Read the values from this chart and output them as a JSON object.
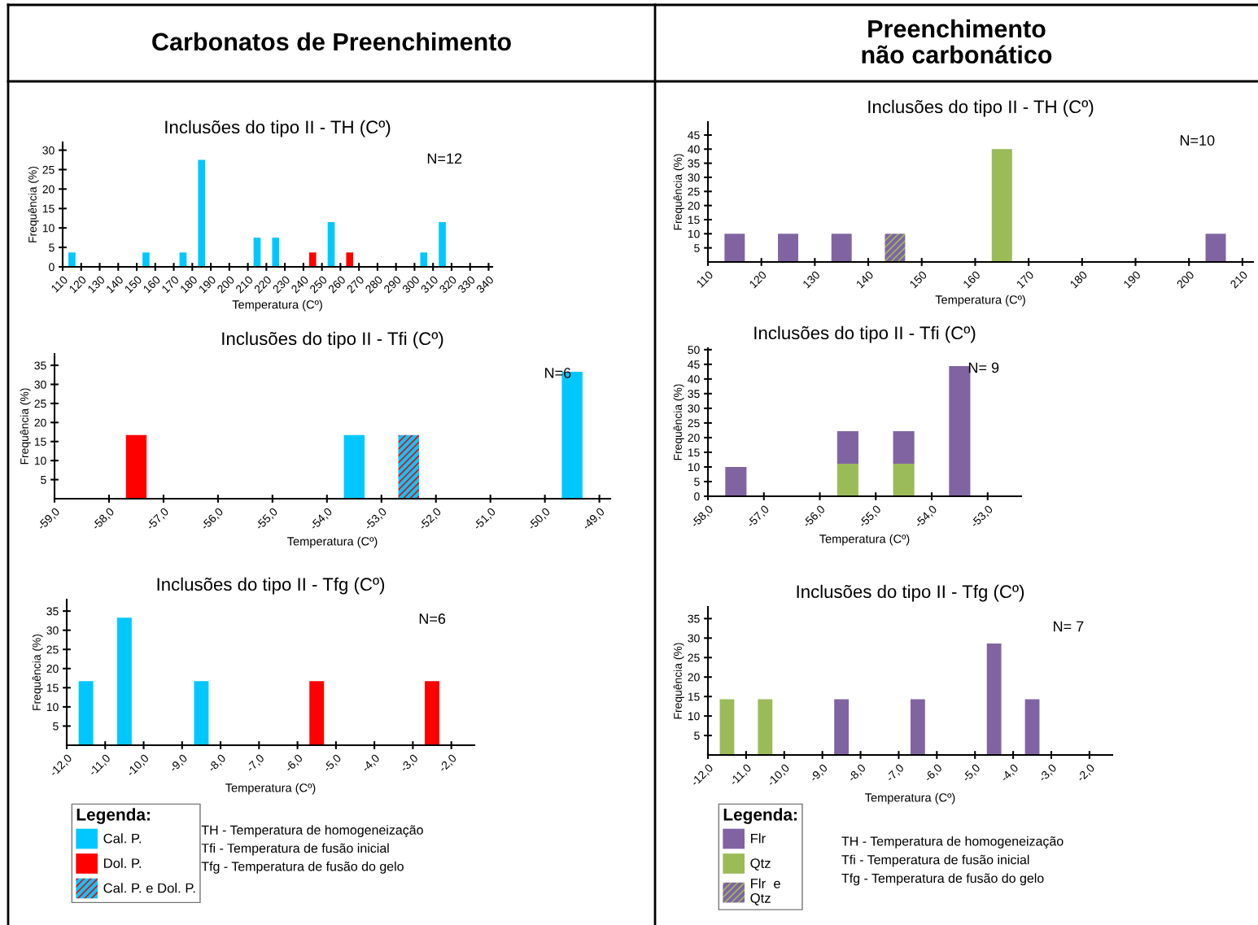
{
  "chart_data": [
    {
      "type": "bar",
      "subtitle": "Carbonatos de Preenchimento",
      "title": "Inclusões do tipo II - TH (Cº)",
      "xlabel": "Temperatura (Cº)",
      "ylabel": "Frequência (%)",
      "annotations": [
        "N=12"
      ],
      "legend": "bottom",
      "xlim": [
        110,
        342
      ],
      "xticks": [
        110,
        120,
        130,
        140,
        150,
        160,
        170,
        180,
        190,
        200,
        210,
        220,
        230,
        240,
        250,
        260,
        270,
        280,
        290,
        300,
        310,
        320,
        330,
        340
      ],
      "ylim": [
        0,
        32
      ],
      "yticks": [
        0,
        5,
        10,
        15,
        20,
        25,
        30
      ],
      "grid": false,
      "series": [
        {
          "name": "Cal. P.",
          "color": "#00c8ff",
          "x": [
            115,
            155,
            175,
            185,
            215,
            225,
            255,
            305,
            315
          ],
          "values": [
            3.7,
            3.7,
            3.7,
            27.5,
            7.5,
            7.5,
            11.5,
            3.7,
            11.5
          ]
        },
        {
          "name": "Dol. P.",
          "color": "#ff0000",
          "x": [
            245,
            265
          ],
          "values": [
            3.7,
            3.7
          ]
        }
      ]
    },
    {
      "type": "bar",
      "title": "Inclusões do tipo II - Tfi (Cº)",
      "xlabel": "Temperatura (Cº)",
      "ylabel": "Frequência (%)",
      "annotations": [
        "N=6"
      ],
      "legend_title": "Legenda:",
      "legend": "bottom",
      "xlim": [
        -59,
        -48.8
      ],
      "xticks": [
        {
          "value": -59,
          "label": "-59,0"
        },
        {
          "value": -58,
          "label": "-58,0"
        },
        {
          "value": -57,
          "label": "-57,0"
        },
        {
          "value": -56,
          "label": "-56,0"
        },
        {
          "value": -55,
          "label": "-55,0"
        },
        {
          "value": -54,
          "label": "-54,0"
        },
        {
          "value": -53,
          "label": "-53,0"
        },
        {
          "value": -52,
          "label": "-52,0"
        },
        {
          "value": -51,
          "label": "-51,0"
        },
        {
          "value": -50,
          "label": "-50,0"
        },
        {
          "value": -49,
          "label": "-49,0"
        }
      ],
      "ylim": [
        0,
        38
      ],
      "yticks": [
        5,
        10,
        15,
        20,
        25,
        30,
        35
      ],
      "grid": false,
      "series": [
        {
          "name": "Cal. P.",
          "color": "#00c8ff",
          "x": [
            -53.5,
            -49.5
          ],
          "values": [
            16.7,
            33.3
          ]
        },
        {
          "name": "Dol. P.",
          "color": "#ff0000",
          "x": [
            -57.5
          ],
          "values": [
            16.7
          ]
        },
        {
          "name": "Cal. P. e Dol. P.",
          "color": "#00c8ff",
          "x": [
            -52.5
          ],
          "values": [
            16.7
          ]
        }
      ]
    },
    {
      "type": "bar",
      "title": "Inclusões do tipo II - Tfg (Cº)",
      "xlabel": "Temperatura (Cº)",
      "ylabel": "Frequência (%)",
      "legend": "bottom",
      "annotations": [
        "N=6",
        "TH - Temperatura de homogeneização",
        "Tfi - Temperatura de fusão inicial",
        "Tfg - Temperatura de fusão do gelo"
      ],
      "xlim": [
        -12,
        -1.4
      ],
      "xticks": [
        {
          "value": -12,
          "label": "-12,0"
        },
        {
          "value": -11,
          "label": "-11,0"
        },
        {
          "value": -10,
          "label": "-10,0"
        },
        {
          "value": -9,
          "label": "-9,0"
        },
        {
          "value": -8,
          "label": "-8,0"
        },
        {
          "value": -7,
          "label": "-7,0"
        },
        {
          "value": -6,
          "label": "-6,0"
        },
        {
          "value": -5,
          "label": "-5,0"
        },
        {
          "value": -4,
          "label": "-4,0"
        },
        {
          "value": -3,
          "label": "-3,0"
        },
        {
          "value": -2,
          "label": "-2,0"
        }
      ],
      "ylim": [
        0,
        38
      ],
      "yticks": [
        5,
        10,
        15,
        20,
        25,
        30,
        35
      ],
      "grid": false,
      "series": [
        {
          "name": "Cal. P.",
          "color": "#00c8ff",
          "x": [
            -11.5,
            -10.5,
            -8.5
          ],
          "values": [
            16.7,
            33.3,
            16.7
          ]
        },
        {
          "name": "Dol. P.",
          "color": "#ff0000",
          "x": [
            -5.5,
            -2.5
          ],
          "values": [
            16.7,
            16.7
          ]
        },
        {
          "name": "Cal. P. e Dol. P.",
          "color": "#00c8ff"
        }
      ]
    },
    {
      "type": "bar",
      "subtitle": "Preenchimento\nnão carbonático",
      "title": "Inclusões do tipo II - TH (Cº)",
      "xlabel": "Temperatura (Cº)",
      "ylabel": "Frequência (%)",
      "annotations": [
        "N=10"
      ],
      "legend_title": "Legenda:",
      "legend": "bottom",
      "xlim": [
        110,
        212
      ],
      "xticks": [
        110,
        120,
        130,
        140,
        150,
        160,
        170,
        180,
        190,
        200,
        210
      ],
      "ylim": [
        0,
        49.6
      ],
      "yticks": [
        5,
        10,
        15,
        20,
        25,
        30,
        35,
        40,
        45
      ],
      "grid": false,
      "series": [
        {
          "name": "Flr",
          "color": "#8064a2",
          "x": [
            115,
            125,
            135,
            205
          ],
          "values": [
            10,
            10,
            10,
            10
          ]
        },
        {
          "name": "Qtz",
          "color": "#9bbb59",
          "x": [
            165
          ],
          "values": [
            40
          ]
        },
        {
          "name": "Flr  e\nQtz",
          "color": "#8064a2",
          "x": [
            145
          ],
          "values": [
            10
          ]
        }
      ]
    },
    {
      "type": "bar",
      "stacked": true,
      "title": "Inclusões do tipo II - Tfi (Cº)",
      "xlabel": "Temperatura (Cº)",
      "ylabel": "Frequência (%)",
      "annotations": [
        "N= 9"
      ],
      "legend": "bottom",
      "x": [
        -57.5,
        -55.5,
        -54.5,
        -53.5
      ],
      "xlim": [
        -58,
        -52.4
      ],
      "xticks": [
        {
          "value": -58,
          "label": "-58,0"
        },
        {
          "value": -57,
          "label": "-57,0"
        },
        {
          "value": -56,
          "label": "-56,0"
        },
        {
          "value": -55,
          "label": "-55,0"
        },
        {
          "value": -54,
          "label": "-54,0"
        },
        {
          "value": -53,
          "label": "-53,0"
        }
      ],
      "ylim": [
        0,
        50.5
      ],
      "yticks": [
        0,
        5,
        10,
        15,
        20,
        25,
        30,
        35,
        40,
        45,
        50
      ],
      "grid": false,
      "series": [
        {
          "name": "Qtz",
          "color": "#9bbb59",
          "values": [
            null,
            11.1,
            11.1,
            null
          ]
        },
        {
          "name": "Flr",
          "color": "#8064a2",
          "values": [
            10,
            11.1,
            11.1,
            44.4
          ]
        }
      ]
    },
    {
      "type": "bar",
      "title": "Inclusões do tipo II - Tfg (Cº)",
      "xlabel": "Temperatura (Cº)",
      "ylabel": "Frequência (%)",
      "legend": "bottom",
      "annotations": [
        "N= 7",
        "TH - Temperatura de homogeneização",
        "Tfi - Temperatura de fusão inicial",
        "Tfg - Temperatura de fusão do gelo"
      ],
      "xlim": [
        -12,
        -1.4
      ],
      "xticks": [
        {
          "value": -12,
          "label": "-12,0"
        },
        {
          "value": -11,
          "label": "-11,0"
        },
        {
          "value": -10,
          "label": "-10,0"
        },
        {
          "value": -9,
          "label": "-9,0"
        },
        {
          "value": -8,
          "label": "-8,0"
        },
        {
          "value": -7,
          "label": "-7,0"
        },
        {
          "value": -6,
          "label": "-6,0"
        },
        {
          "value": -5,
          "label": "-5,0"
        },
        {
          "value": -4,
          "label": "-4,0"
        },
        {
          "value": -3,
          "label": "-3,0"
        },
        {
          "value": -2,
          "label": "-2,0"
        }
      ],
      "ylim": [
        0,
        38
      ],
      "yticks": [
        5,
        10,
        15,
        20,
        25,
        30,
        35
      ],
      "grid": false,
      "series": [
        {
          "name": "Flr",
          "color": "#8064a2",
          "x": [
            -8.5,
            -6.5,
            -4.5,
            -3.5
          ],
          "values": [
            14.3,
            14.3,
            28.6,
            14.3
          ]
        },
        {
          "name": "Qtz",
          "color": "#9bbb59",
          "x": [
            -11.5,
            -10.5
          ],
          "values": [
            14.3,
            14.3
          ]
        },
        {
          "name": "Flr  e\nQtz",
          "color": "#8064a2"
        }
      ]
    }
  ]
}
